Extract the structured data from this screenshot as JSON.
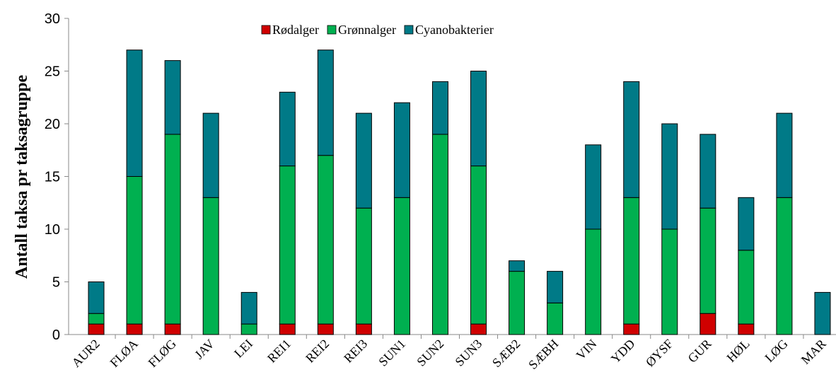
{
  "chart_data": {
    "type": "stacked_bar",
    "ylabel": "Antall taksa pr taksagruppe",
    "categories": [
      "AUR2",
      "FLØA",
      "FLØG",
      "JAV",
      "LEI",
      "REI1",
      "REI2",
      "REI3",
      "SUN1",
      "SUN2",
      "SUN3",
      "SÆB2",
      "SÆBH",
      "VIN",
      "YDD",
      "ØYSF",
      "GUR",
      "HØL",
      "LØG",
      "MAR"
    ],
    "series": [
      {
        "name": "Rødalger",
        "color": "#d00000",
        "values": [
          1,
          1,
          1,
          0,
          0,
          1,
          1,
          1,
          0,
          0,
          1,
          0,
          0,
          0,
          1,
          0,
          2,
          1,
          0,
          0
        ]
      },
      {
        "name": "Grønnalger",
        "color": "#00b050",
        "values": [
          1,
          14,
          18,
          13,
          1,
          15,
          16,
          11,
          13,
          19,
          15,
          6,
          3,
          10,
          12,
          10,
          10,
          7,
          13,
          0
        ]
      },
      {
        "name": "Cyanobakterier",
        "color": "#007a87",
        "values": [
          3,
          12,
          7,
          8,
          3,
          7,
          10,
          9,
          9,
          5,
          9,
          1,
          3,
          8,
          11,
          10,
          7,
          5,
          8,
          4
        ]
      }
    ],
    "ylim": [
      0,
      30
    ],
    "yticks": [
      0,
      5,
      10,
      15,
      20,
      25,
      30
    ],
    "legend": "top"
  }
}
